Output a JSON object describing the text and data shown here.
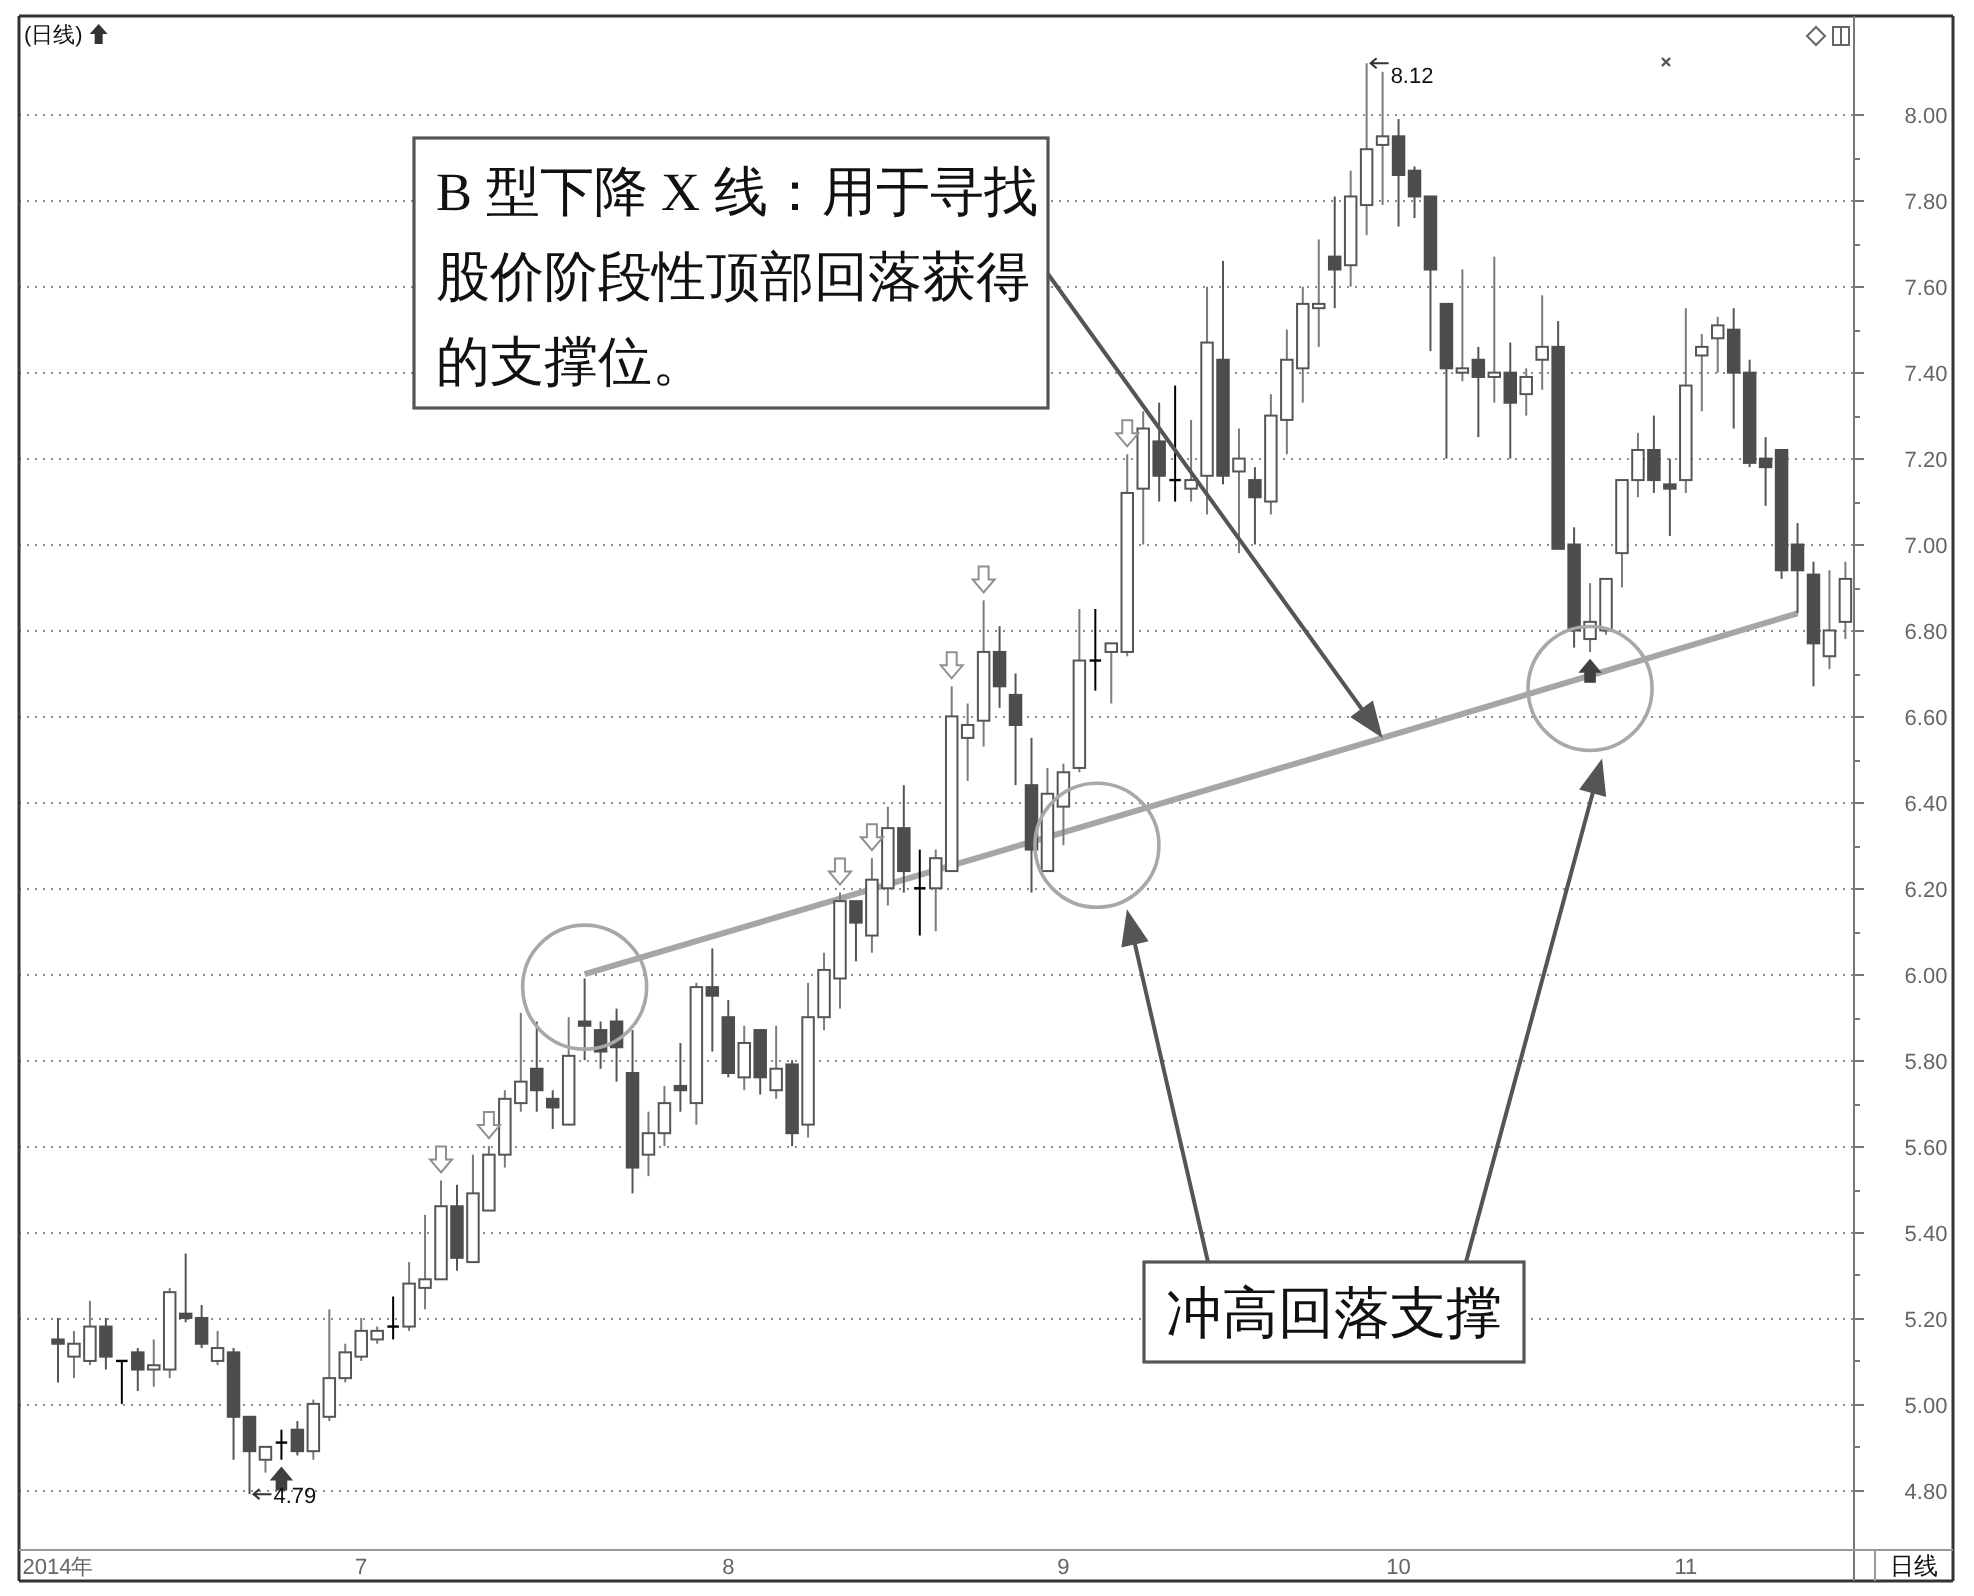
{
  "chart_data": {
    "type": "candlestick",
    "title": "(日线)",
    "categories": [
      "2014年",
      null,
      null,
      null,
      null,
      null,
      null,
      null,
      null,
      null,
      null,
      null,
      null,
      null,
      null,
      null,
      null,
      null,
      null,
      "7",
      null,
      null,
      null,
      null,
      null,
      null,
      null,
      null,
      null,
      null,
      null,
      null,
      null,
      null,
      null,
      null,
      null,
      null,
      null,
      null,
      null,
      null,
      "8",
      null,
      null,
      null,
      null,
      null,
      null,
      null,
      null,
      null,
      null,
      null,
      null,
      null,
      null,
      null,
      null,
      null,
      null,
      null,
      null,
      "9",
      null,
      null,
      null,
      null,
      null,
      null,
      null,
      null,
      null,
      null,
      null,
      null,
      null,
      null,
      null,
      null,
      null,
      null,
      null,
      null,
      "10",
      null,
      null,
      null,
      null,
      null,
      null,
      null,
      null,
      null,
      null,
      null,
      null,
      null,
      null,
      null,
      null,
      null,
      "11",
      null,
      null,
      null,
      null,
      null,
      null,
      null,
      null,
      null,
      null
    ],
    "ohlc": [
      [
        5.15,
        5.2,
        5.05,
        5.14
      ],
      [
        5.11,
        5.17,
        5.06,
        5.14
      ],
      [
        5.1,
        5.24,
        5.09,
        5.18
      ],
      [
        5.18,
        5.2,
        5.08,
        5.11
      ],
      [
        5.1,
        5.1,
        5.0,
        5.1
      ],
      [
        5.12,
        5.13,
        5.03,
        5.08
      ],
      [
        5.08,
        5.15,
        5.04,
        5.09
      ],
      [
        5.08,
        5.27,
        5.06,
        5.26
      ],
      [
        5.21,
        5.35,
        5.19,
        5.2
      ],
      [
        5.2,
        5.23,
        5.13,
        5.14
      ],
      [
        5.1,
        5.17,
        5.09,
        5.13
      ],
      [
        5.12,
        5.13,
        4.87,
        4.97
      ],
      [
        4.97,
        4.97,
        4.79,
        4.89
      ],
      [
        4.87,
        4.9,
        4.84,
        4.9
      ],
      [
        4.91,
        4.94,
        4.87,
        4.91
      ],
      [
        4.94,
        4.96,
        4.88,
        4.89
      ],
      [
        4.89,
        5.01,
        4.87,
        5.0
      ],
      [
        4.97,
        5.22,
        4.96,
        5.06
      ],
      [
        5.06,
        5.14,
        5.05,
        5.12
      ],
      [
        5.11,
        5.2,
        5.1,
        5.17
      ],
      [
        5.15,
        5.18,
        5.14,
        5.17
      ],
      [
        5.18,
        5.25,
        5.15,
        5.18
      ],
      [
        5.18,
        5.33,
        5.17,
        5.28
      ],
      [
        5.27,
        5.44,
        5.22,
        5.29
      ],
      [
        5.29,
        5.52,
        5.29,
        5.46
      ],
      [
        5.46,
        5.51,
        5.31,
        5.34
      ],
      [
        5.33,
        5.58,
        5.33,
        5.49
      ],
      [
        5.45,
        5.6,
        5.45,
        5.58
      ],
      [
        5.58,
        5.73,
        5.55,
        5.71
      ],
      [
        5.7,
        5.91,
        5.68,
        5.75
      ],
      [
        5.78,
        5.89,
        5.68,
        5.73
      ],
      [
        5.71,
        5.73,
        5.64,
        5.69
      ],
      [
        5.65,
        5.9,
        5.65,
        5.81
      ],
      [
        5.89,
        5.99,
        5.8,
        5.88
      ],
      [
        5.87,
        5.89,
        5.78,
        5.82
      ],
      [
        5.89,
        5.92,
        5.75,
        5.83
      ],
      [
        5.77,
        5.87,
        5.49,
        5.55
      ],
      [
        5.58,
        5.68,
        5.53,
        5.63
      ],
      [
        5.63,
        5.74,
        5.6,
        5.7
      ],
      [
        5.74,
        5.84,
        5.68,
        5.73
      ],
      [
        5.7,
        5.98,
        5.65,
        5.97
      ],
      [
        5.97,
        6.06,
        5.82,
        5.95
      ],
      [
        5.9,
        5.94,
        5.76,
        5.77
      ],
      [
        5.76,
        5.88,
        5.73,
        5.84
      ],
      [
        5.87,
        5.87,
        5.72,
        5.76
      ],
      [
        5.73,
        5.88,
        5.71,
        5.78
      ],
      [
        5.79,
        5.8,
        5.6,
        5.63
      ],
      [
        5.65,
        5.98,
        5.62,
        5.9
      ],
      [
        5.9,
        6.05,
        5.87,
        6.01
      ],
      [
        5.99,
        6.19,
        5.92,
        6.17
      ],
      [
        6.17,
        6.17,
        6.03,
        6.12
      ],
      [
        6.09,
        6.27,
        6.05,
        6.22
      ],
      [
        6.2,
        6.39,
        6.16,
        6.34
      ],
      [
        6.34,
        6.44,
        6.19,
        6.24
      ],
      [
        6.2,
        6.29,
        6.09,
        6.2
      ],
      [
        6.2,
        6.29,
        6.1,
        6.27
      ],
      [
        6.24,
        6.67,
        6.24,
        6.6
      ],
      [
        6.55,
        6.63,
        6.45,
        6.58
      ],
      [
        6.59,
        6.87,
        6.53,
        6.75
      ],
      [
        6.75,
        6.81,
        6.62,
        6.67
      ],
      [
        6.65,
        6.7,
        6.44,
        6.58
      ],
      [
        6.44,
        6.55,
        6.19,
        6.29
      ],
      [
        6.24,
        6.48,
        6.24,
        6.42
      ],
      [
        6.39,
        6.49,
        6.3,
        6.47
      ],
      [
        6.48,
        6.85,
        6.47,
        6.73
      ],
      [
        6.73,
        6.85,
        6.66,
        6.73
      ],
      [
        6.75,
        6.77,
        6.63,
        6.77
      ],
      [
        6.75,
        7.21,
        6.74,
        7.12
      ],
      [
        7.13,
        7.31,
        7.0,
        7.27
      ],
      [
        7.24,
        7.33,
        7.1,
        7.16
      ],
      [
        7.15,
        7.37,
        7.1,
        7.15
      ],
      [
        7.13,
        7.29,
        7.1,
        7.15
      ],
      [
        7.16,
        7.6,
        7.07,
        7.47
      ],
      [
        7.43,
        7.66,
        7.14,
        7.16
      ],
      [
        7.17,
        7.27,
        6.98,
        7.2
      ],
      [
        7.15,
        7.18,
        7.0,
        7.11
      ],
      [
        7.1,
        7.35,
        7.07,
        7.3
      ],
      [
        7.29,
        7.5,
        7.21,
        7.43
      ],
      [
        7.41,
        7.6,
        7.33,
        7.56
      ],
      [
        7.55,
        7.71,
        7.46,
        7.56
      ],
      [
        7.67,
        7.81,
        7.55,
        7.64
      ],
      [
        7.65,
        7.87,
        7.6,
        7.81
      ],
      [
        7.79,
        8.12,
        7.72,
        7.92
      ],
      [
        7.93,
        8.1,
        7.79,
        7.95
      ],
      [
        7.95,
        7.99,
        7.74,
        7.86
      ],
      [
        7.87,
        7.88,
        7.76,
        7.81
      ],
      [
        7.81,
        7.81,
        7.45,
        7.64
      ],
      [
        7.56,
        7.56,
        7.2,
        7.41
      ],
      [
        7.4,
        7.64,
        7.38,
        7.41
      ],
      [
        7.43,
        7.46,
        7.25,
        7.39
      ],
      [
        7.39,
        7.67,
        7.33,
        7.4
      ],
      [
        7.4,
        7.47,
        7.2,
        7.33
      ],
      [
        7.35,
        7.41,
        7.3,
        7.39
      ],
      [
        7.43,
        7.58,
        7.36,
        7.46
      ],
      [
        7.46,
        7.52,
        6.99,
        6.99
      ],
      [
        7.0,
        7.04,
        6.76,
        6.8
      ],
      [
        6.78,
        6.91,
        6.75,
        6.82
      ],
      [
        6.8,
        6.92,
        6.79,
        6.92
      ],
      [
        6.98,
        7.15,
        6.9,
        7.15
      ],
      [
        7.15,
        7.26,
        7.11,
        7.22
      ],
      [
        7.22,
        7.3,
        7.12,
        7.15
      ],
      [
        7.14,
        7.2,
        7.02,
        7.13
      ],
      [
        7.15,
        7.55,
        7.12,
        7.37
      ],
      [
        7.44,
        7.49,
        7.31,
        7.46
      ],
      [
        7.48,
        7.53,
        7.4,
        7.51
      ],
      [
        7.5,
        7.55,
        7.27,
        7.4
      ],
      [
        7.4,
        7.43,
        7.18,
        7.19
      ],
      [
        7.2,
        7.25,
        7.09,
        7.18
      ],
      [
        7.22,
        7.22,
        6.92,
        6.94
      ],
      [
        7.0,
        7.05,
        6.84,
        6.94
      ],
      [
        6.93,
        6.96,
        6.67,
        6.77
      ],
      [
        6.74,
        6.94,
        6.71,
        6.8
      ],
      [
        6.82,
        6.96,
        6.78,
        6.92
      ]
    ],
    "series": [
      {
        "type": "line",
        "color": "#a6a6a6",
        "values": [
          null,
          null,
          null,
          null,
          null,
          null,
          null,
          null,
          null,
          null,
          null,
          null,
          null,
          null,
          null,
          null,
          null,
          null,
          null,
          null,
          null,
          null,
          null,
          null,
          null,
          null,
          null,
          null,
          null,
          null,
          null,
          null,
          null,
          6.0,
          null,
          null,
          null,
          null,
          null,
          null,
          null,
          null,
          null,
          null,
          null,
          null,
          null,
          null,
          null,
          null,
          null,
          null,
          null,
          null,
          null,
          null,
          null,
          null,
          null,
          null,
          null,
          null,
          null,
          null,
          null,
          null,
          null,
          null,
          null,
          null,
          null,
          null,
          null,
          null,
          null,
          null,
          null,
          null,
          null,
          null,
          null,
          null,
          null,
          6.55,
          null,
          null,
          null,
          null,
          null,
          null,
          null,
          null,
          null,
          null,
          null,
          null,
          null,
          null,
          null,
          null,
          null,
          null,
          null,
          null,
          null,
          null,
          null,
          null,
          null,
          6.84,
          null,
          null,
          null
        ]
      }
    ],
    "ylim": [
      4.66,
      8.23
    ],
    "yticks": [
      {
        "value": 4.8,
        "label": "4.80"
      },
      {
        "value": 4.9,
        "label": null
      },
      {
        "value": 5.0,
        "label": "5.00"
      },
      {
        "value": 5.1,
        "label": null
      },
      {
        "value": 5.2,
        "label": "5.20"
      },
      {
        "value": 5.3,
        "label": null
      },
      {
        "value": 5.4,
        "label": "5.40"
      },
      {
        "value": 5.5,
        "label": null
      },
      {
        "value": 5.6,
        "label": "5.60"
      },
      {
        "value": 5.7,
        "label": null
      },
      {
        "value": 5.8,
        "label": "5.80"
      },
      {
        "value": 5.9,
        "label": null
      },
      {
        "value": 6.0,
        "label": "6.00"
      },
      {
        "value": 6.1,
        "label": null
      },
      {
        "value": 6.2,
        "label": "6.20"
      },
      {
        "value": 6.3,
        "label": null
      },
      {
        "value": 6.4,
        "label": "6.40"
      },
      {
        "value": 6.5,
        "label": null
      },
      {
        "value": 6.6,
        "label": "6.60"
      },
      {
        "value": 6.7,
        "label": null
      },
      {
        "value": 6.8,
        "label": "6.80"
      },
      {
        "value": 6.9,
        "label": null
      },
      {
        "value": 7.0,
        "label": "7.00"
      },
      {
        "value": 7.1,
        "label": null
      },
      {
        "value": 7.2,
        "label": "7.20"
      },
      {
        "value": 7.3,
        "label": null
      },
      {
        "value": 7.4,
        "label": "7.40"
      },
      {
        "value": 7.5,
        "label": null
      },
      {
        "value": 7.6,
        "label": "7.60"
      },
      {
        "value": 7.7,
        "label": null
      },
      {
        "value": 7.8,
        "label": "7.80"
      },
      {
        "value": 7.9,
        "label": null
      },
      {
        "value": 8.0,
        "label": "8.00"
      }
    ],
    "grid": "y",
    "annotations": [
      "4.79",
      "8.12",
      "B 型下降 X 线：用于寻找股价阶段性顶部回落获得的支撑位。",
      "冲高回落支撑",
      "日线"
    ]
  }
}
